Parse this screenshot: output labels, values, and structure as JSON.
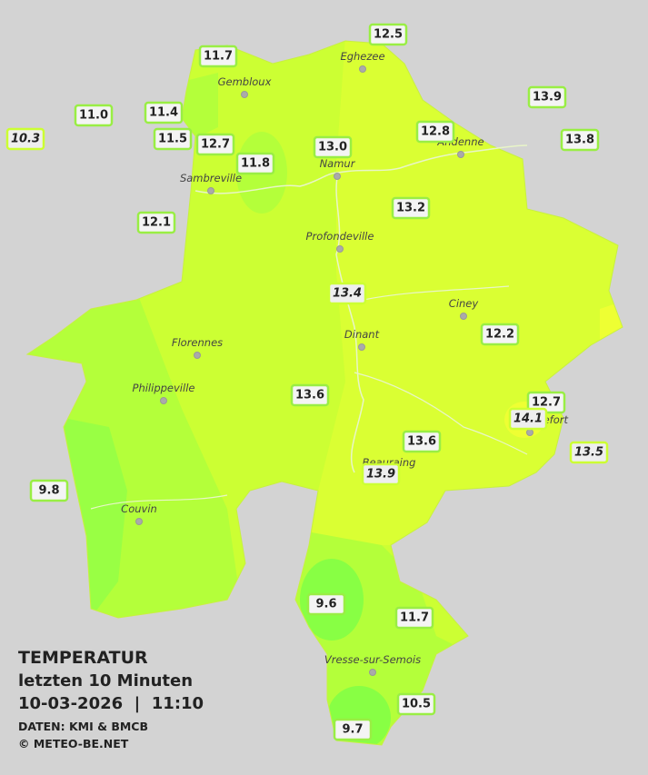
{
  "stations": [
    {
      "label": "12.5"
    },
    {
      "label": "11.7"
    },
    {
      "label": "13.9"
    },
    {
      "label": "11.0"
    },
    {
      "label": "11.4"
    },
    {
      "label": "10.3"
    },
    {
      "label": "11.5"
    },
    {
      "label": "12.7"
    },
    {
      "label": "11.8"
    },
    {
      "label": "13.0"
    },
    {
      "label": "12.8"
    },
    {
      "label": "13.8"
    },
    {
      "label": "12.1"
    },
    {
      "label": "13.2"
    },
    {
      "label": "13.4"
    },
    {
      "label": "12.2"
    },
    {
      "label": "13.6"
    },
    {
      "label": "12.7"
    },
    {
      "label": "14.1"
    },
    {
      "label": "13.6"
    },
    {
      "label": "13.5"
    },
    {
      "label": "13.9"
    },
    {
      "label": "9.8"
    },
    {
      "label": "9.6"
    },
    {
      "label": "11.7"
    },
    {
      "label": "10.5"
    },
    {
      "label": "9.7"
    }
  ],
  "cities": [
    {
      "name": "Eghezee"
    },
    {
      "name": "Gembloux"
    },
    {
      "name": "Andenne"
    },
    {
      "name": "Namur"
    },
    {
      "name": "Sambreville"
    },
    {
      "name": "Profondeville"
    },
    {
      "name": "Ciney"
    },
    {
      "name": "Dinant"
    },
    {
      "name": "Florennes"
    },
    {
      "name": "Philippeville"
    },
    {
      "name": "Rochefort"
    },
    {
      "name": "Beauraing"
    },
    {
      "name": "Couvin"
    },
    {
      "name": "Vresse-sur-Semois"
    }
  ],
  "legend": {
    "title": "TEMPERATUR",
    "subtitle": "letzten 10 Minuten",
    "timestamp": "10-03-2026  |  11:10",
    "source": "DATEN: KMI & BMCB",
    "copyright": "© METEO-BE.NET"
  }
}
